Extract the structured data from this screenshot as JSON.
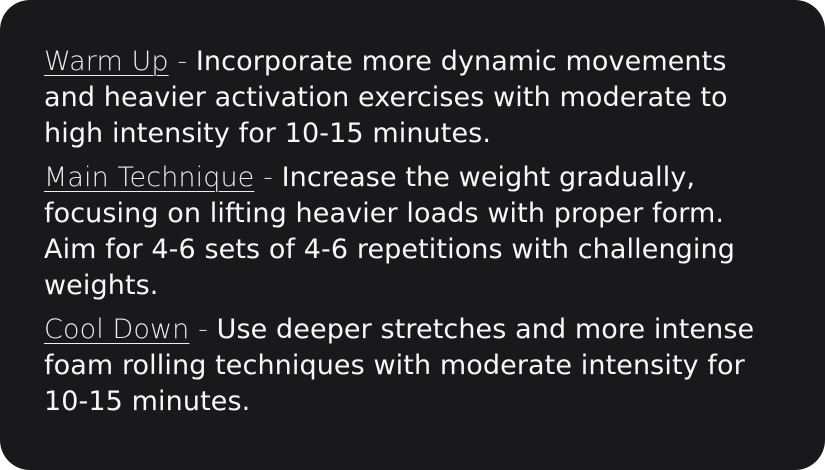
{
  "sections": [
    {
      "heading": "Warm Up",
      "separator": " - ",
      "text": "Incorporate more dynamic movements and heavier activation exercises with moderate to high intensity for 10-15 minutes."
    },
    {
      "heading": "Main Technique",
      "separator": " - ",
      "text": "Increase the weight gradually, focusing on lifting heavier loads with proper form. Aim for 4-6 sets of 4-6 repetitions with challenging weights."
    },
    {
      "heading": "Cool Down",
      "separator": " - ",
      "text": "Use deeper stretches and more intense foam rolling techniques with moderate intensity for 10-15 minutes."
    }
  ]
}
